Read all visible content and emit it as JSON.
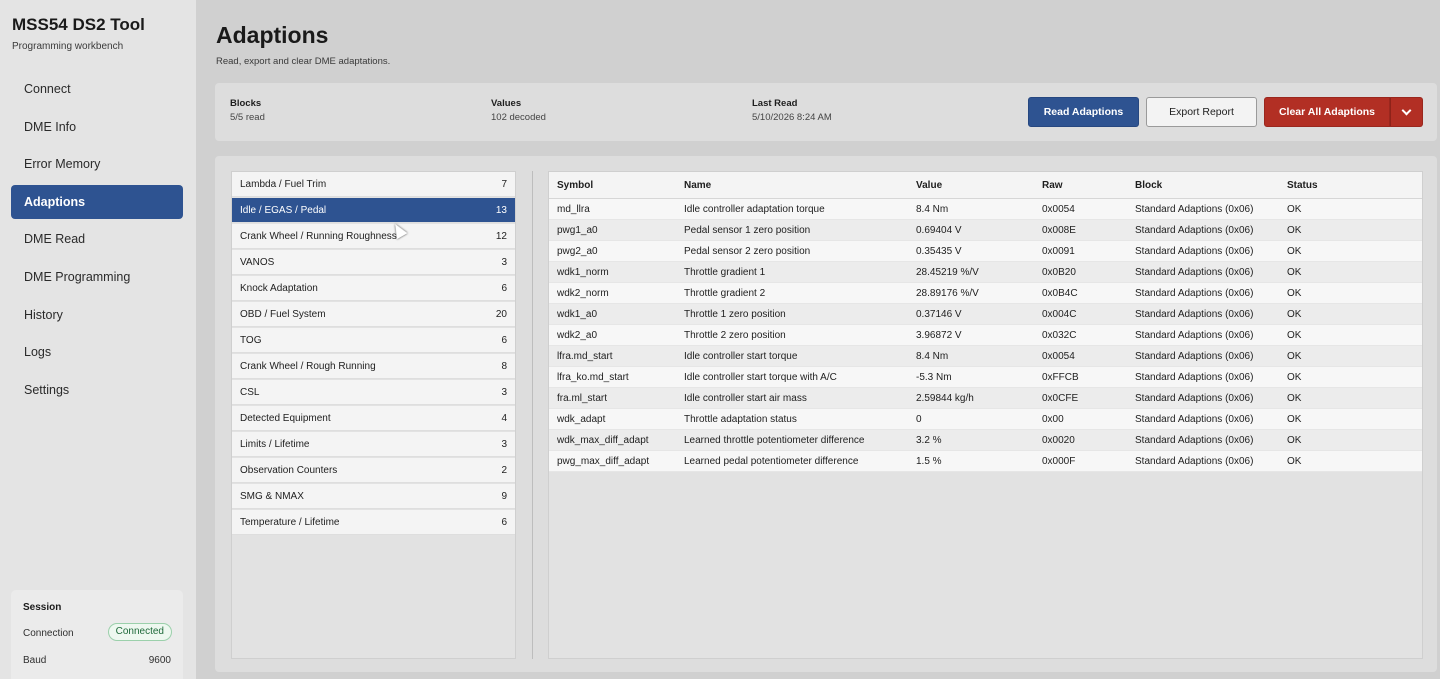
{
  "app": {
    "title": "MSS54 DS2 Tool",
    "subtitle": "Programming workbench"
  },
  "nav": {
    "items": [
      {
        "label": "Connect"
      },
      {
        "label": "DME Info"
      },
      {
        "label": "Error Memory"
      },
      {
        "label": "Adaptions",
        "active": true
      },
      {
        "label": "DME Read"
      },
      {
        "label": "DME Programming"
      },
      {
        "label": "History"
      },
      {
        "label": "Logs"
      },
      {
        "label": "Settings"
      }
    ]
  },
  "session": {
    "title": "Session",
    "connection_label": "Connection",
    "connection_status": "Connected",
    "baud_label": "Baud",
    "baud_value": "9600"
  },
  "page": {
    "title": "Adaptions",
    "subtitle": "Read, export and clear DME adaptations."
  },
  "summary": {
    "blocks_label": "Blocks",
    "blocks_value": "5/5 read",
    "values_label": "Values",
    "values_value": "102 decoded",
    "last_read_label": "Last Read",
    "last_read_value": "5/10/2026 8:24 AM"
  },
  "actions": {
    "read_label": "Read Adaptions",
    "export_label": "Export Report",
    "clear_label": "Clear All Adaptions"
  },
  "blocks": [
    {
      "name": "Lambda / Fuel Trim",
      "count": "7"
    },
    {
      "name": "Idle / EGAS / Pedal",
      "count": "13",
      "active": true
    },
    {
      "name": "Crank Wheel / Running Roughness",
      "count": "12"
    },
    {
      "name": "VANOS",
      "count": "3"
    },
    {
      "name": "Knock Adaptation",
      "count": "6"
    },
    {
      "name": "OBD / Fuel System",
      "count": "20"
    },
    {
      "name": "TOG",
      "count": "6"
    },
    {
      "name": "Crank Wheel / Rough Running",
      "count": "8"
    },
    {
      "name": "CSL",
      "count": "3"
    },
    {
      "name": "Detected Equipment",
      "count": "4"
    },
    {
      "name": "Limits / Lifetime",
      "count": "3"
    },
    {
      "name": "Observation Counters",
      "count": "2"
    },
    {
      "name": "SMG & NMAX",
      "count": "9"
    },
    {
      "name": "Temperature / Lifetime",
      "count": "6"
    }
  ],
  "table": {
    "columns": [
      "Symbol",
      "Name",
      "Value",
      "Raw",
      "Block",
      "Status"
    ],
    "rows": [
      [
        "md_llra",
        "Idle controller adaptation torque",
        "8.4 Nm",
        "0x0054",
        "Standard Adaptions (0x06)",
        "OK"
      ],
      [
        "pwg1_a0",
        "Pedal sensor 1 zero position",
        "0.69404 V",
        "0x008E",
        "Standard Adaptions (0x06)",
        "OK"
      ],
      [
        "pwg2_a0",
        "Pedal sensor 2 zero position",
        "0.35435 V",
        "0x0091",
        "Standard Adaptions (0x06)",
        "OK"
      ],
      [
        "wdk1_norm",
        "Throttle gradient 1",
        "28.45219 %/V",
        "0x0B20",
        "Standard Adaptions (0x06)",
        "OK"
      ],
      [
        "wdk2_norm",
        "Throttle gradient 2",
        "28.89176 %/V",
        "0x0B4C",
        "Standard Adaptions (0x06)",
        "OK"
      ],
      [
        "wdk1_a0",
        "Throttle 1 zero position",
        "0.37146 V",
        "0x004C",
        "Standard Adaptions (0x06)",
        "OK"
      ],
      [
        "wdk2_a0",
        "Throttle 2 zero position",
        "3.96872 V",
        "0x032C",
        "Standard Adaptions (0x06)",
        "OK"
      ],
      [
        "lfra.md_start",
        "Idle controller start torque",
        "8.4 Nm",
        "0x0054",
        "Standard Adaptions (0x06)",
        "OK"
      ],
      [
        "lfra_ko.md_start",
        "Idle controller start torque with A/C",
        "-5.3 Nm",
        "0xFFCB",
        "Standard Adaptions (0x06)",
        "OK"
      ],
      [
        "fra.ml_start",
        "Idle controller start air mass",
        "2.59844 kg/h",
        "0x0CFE",
        "Standard Adaptions (0x06)",
        "OK"
      ],
      [
        "wdk_adapt",
        "Throttle adaptation status",
        "0",
        "0x00",
        "Standard Adaptions (0x06)",
        "OK"
      ],
      [
        "wdk_max_diff_adapt",
        "Learned throttle potentiometer difference",
        "3.2 %",
        "0x0020",
        "Standard Adaptions (0x06)",
        "OK"
      ],
      [
        "pwg_max_diff_adapt",
        "Learned pedal potentiometer difference",
        "1.5 %",
        "0x000F",
        "Standard Adaptions (0x06)",
        "OK"
      ]
    ]
  },
  "colors": {
    "accent": "#2e5391",
    "danger": "#b22f24",
    "connected": "#1f6a3a"
  }
}
